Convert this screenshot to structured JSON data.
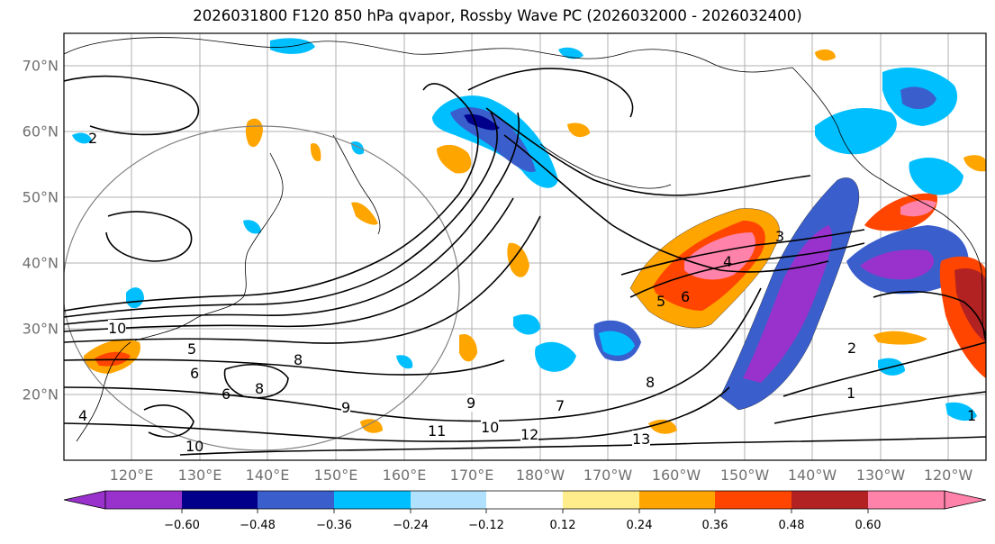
{
  "title": "2026031800 F120 850 hPa qvapor, Rossby Wave PC (2026032000 - 2026032400)",
  "latitude_labels": [
    "70°N",
    "60°N",
    "50°N",
    "40°N",
    "30°N",
    "20°N"
  ],
  "longitude_labels": [
    "120°E",
    "130°E",
    "140°E",
    "150°E",
    "160°E",
    "170°E",
    "180°W",
    "170°W",
    "160°W",
    "150°W",
    "140°W",
    "130°W",
    "120°W"
  ],
  "colorbar": {
    "ticks": [
      "−0.60",
      "−0.48",
      "−0.36",
      "−0.24",
      "−0.12",
      "0.12",
      "0.24",
      "0.36",
      "0.48",
      "0.60"
    ],
    "colors": [
      "#9932cc",
      "#00008b",
      "#3a5fcd",
      "#00bfff",
      "#b0e2ff",
      "#ffffff",
      "#ffec8b",
      "#ffa500",
      "#ff4500",
      "#b22222",
      "#ff82ab"
    ]
  },
  "contour_labels": [
    "2",
    "10",
    "5",
    "6",
    "6",
    "8",
    "8",
    "9",
    "9",
    "10",
    "11",
    "12",
    "13",
    "10",
    "8",
    "7",
    "6",
    "5",
    "4",
    "3",
    "2",
    "1",
    "1",
    "4"
  ]
}
